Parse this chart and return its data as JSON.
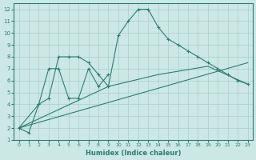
{
  "bg_color": "#cce8e4",
  "grid_color": "#aacfcb",
  "line_color": "#2e7d6e",
  "xlabel": "Humidex (Indice chaleur)",
  "xlim": [
    -0.5,
    23.5
  ],
  "ylim": [
    1,
    12.5
  ],
  "xticks": [
    0,
    1,
    2,
    3,
    4,
    5,
    6,
    7,
    8,
    9,
    10,
    11,
    12,
    13,
    14,
    15,
    16,
    17,
    18,
    19,
    20,
    21,
    22,
    23
  ],
  "yticks": [
    1,
    2,
    3,
    4,
    5,
    6,
    7,
    8,
    9,
    10,
    11,
    12
  ],
  "series1_x": [
    0,
    1,
    2,
    3,
    4,
    5,
    6,
    7,
    8,
    9,
    10,
    11,
    12,
    13,
    14,
    15,
    16,
    17,
    18,
    19,
    20,
    21,
    22,
    23
  ],
  "series1_y": [
    2,
    1.6,
    4,
    4.5,
    8,
    8,
    8,
    7.5,
    6.5,
    5.5,
    9.8,
    11,
    12,
    12,
    10.5,
    9.5,
    9,
    8.5,
    8,
    7.5,
    7,
    6.5,
    6,
    5.7
  ],
  "series2_x": [
    0,
    2,
    3,
    4,
    5,
    6,
    7,
    8,
    9
  ],
  "series2_y": [
    2,
    4,
    7,
    7,
    4.5,
    4.5,
    7,
    5.5,
    6.5
  ],
  "series3_x": [
    0,
    23
  ],
  "series3_y": [
    2,
    7.5
  ],
  "series4_x": [
    0,
    9,
    14,
    19,
    23
  ],
  "series4_y": [
    2,
    5.5,
    6.5,
    7.2,
    5.7
  ],
  "title": ""
}
